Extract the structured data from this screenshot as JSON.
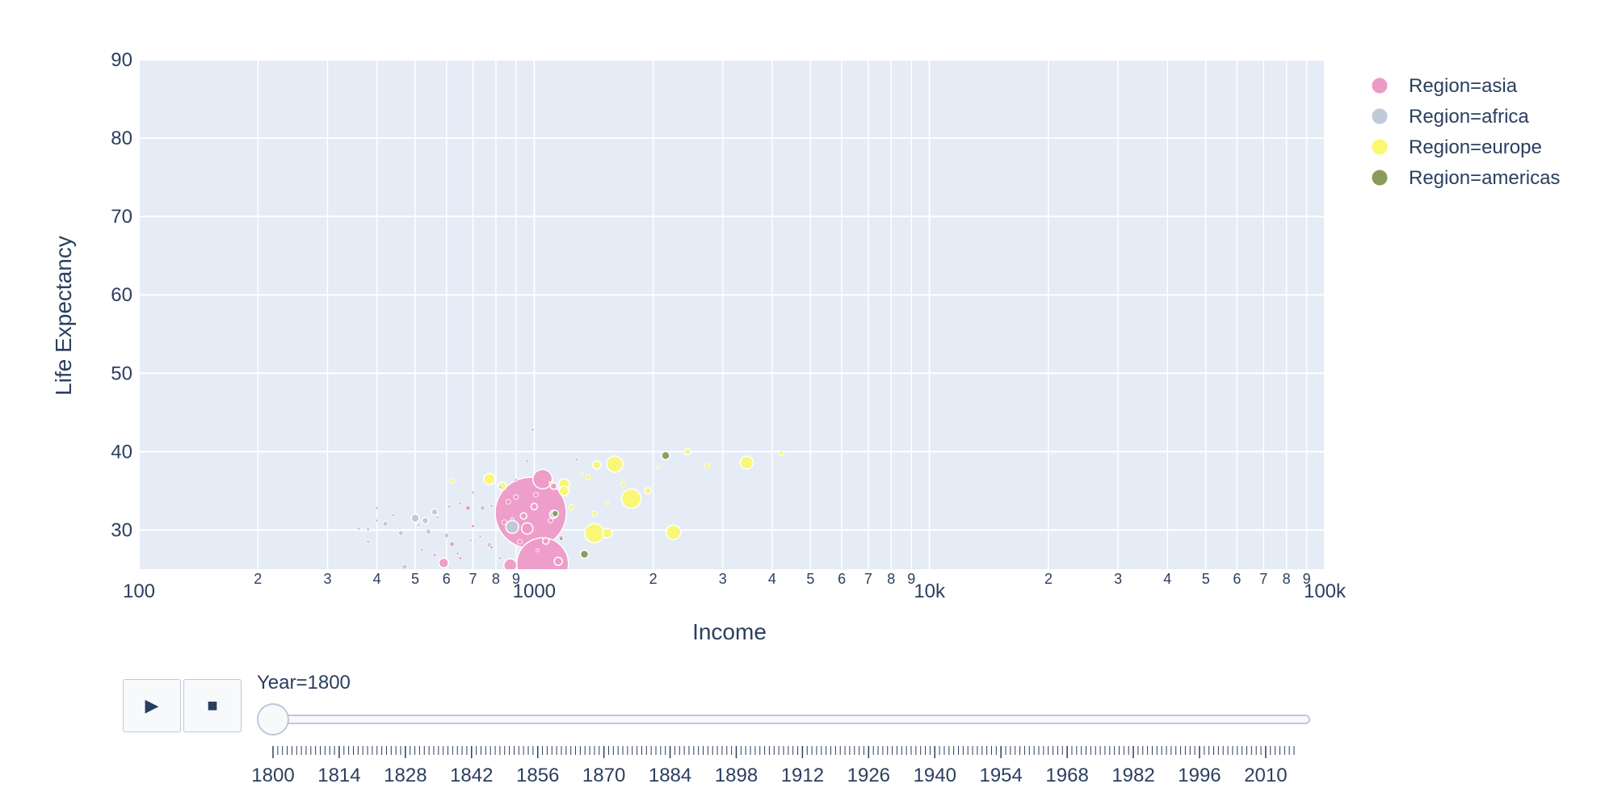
{
  "chart_data": {
    "type": "scatter",
    "xlabel": "Income",
    "ylabel": "Life Expectancy",
    "xscale": "log",
    "xlim": [
      100,
      100000
    ],
    "ylim": [
      25,
      90
    ],
    "x_tick_labels": [
      {
        "v": 100,
        "t": "100",
        "major": true
      },
      {
        "v": 200,
        "t": "2"
      },
      {
        "v": 300,
        "t": "3"
      },
      {
        "v": 400,
        "t": "4"
      },
      {
        "v": 500,
        "t": "5"
      },
      {
        "v": 600,
        "t": "6"
      },
      {
        "v": 700,
        "t": "7"
      },
      {
        "v": 800,
        "t": "8"
      },
      {
        "v": 900,
        "t": "9"
      },
      {
        "v": 1000,
        "t": "1000",
        "major": true
      },
      {
        "v": 2000,
        "t": "2"
      },
      {
        "v": 3000,
        "t": "3"
      },
      {
        "v": 4000,
        "t": "4"
      },
      {
        "v": 5000,
        "t": "5"
      },
      {
        "v": 6000,
        "t": "6"
      },
      {
        "v": 7000,
        "t": "7"
      },
      {
        "v": 8000,
        "t": "8"
      },
      {
        "v": 9000,
        "t": "9"
      },
      {
        "v": 10000,
        "t": "10k",
        "major": true
      },
      {
        "v": 20000,
        "t": "2"
      },
      {
        "v": 30000,
        "t": "3"
      },
      {
        "v": 40000,
        "t": "4"
      },
      {
        "v": 50000,
        "t": "5"
      },
      {
        "v": 60000,
        "t": "6"
      },
      {
        "v": 70000,
        "t": "7"
      },
      {
        "v": 80000,
        "t": "8"
      },
      {
        "v": 90000,
        "t": "9"
      },
      {
        "v": 100000,
        "t": "100k",
        "major": true
      }
    ],
    "y_tick_labels": [
      "30",
      "40",
      "50",
      "60",
      "70",
      "80",
      "90"
    ],
    "grid": true,
    "legend_position": "top-right",
    "series": [
      {
        "name": "Region=asia",
        "color": "#ee9ac7",
        "points": [
          [
            980,
            32.2,
            44
          ],
          [
            1050,
            25.7,
            32
          ],
          [
            1050,
            36.5,
            12
          ],
          [
            870,
            25.5,
            8
          ],
          [
            590,
            25.8,
            6
          ],
          [
            960,
            30.2,
            7
          ],
          [
            1150,
            26.0,
            5
          ],
          [
            940,
            31.8,
            4
          ],
          [
            1000,
            33.0,
            4
          ],
          [
            1070,
            28.6,
            4
          ],
          [
            1120,
            35.6,
            4
          ],
          [
            840,
            31.0,
            3
          ],
          [
            620,
            28.2,
            3
          ],
          [
            680,
            32.8,
            3
          ],
          [
            900,
            34.2,
            3
          ],
          [
            1010,
            34.5,
            3
          ],
          [
            1170,
            29.0,
            3
          ],
          [
            920,
            28.5,
            3
          ],
          [
            1100,
            31.2,
            3
          ],
          [
            860,
            33.6,
            3
          ],
          [
            700,
            30.5,
            2
          ],
          [
            780,
            27.8,
            2
          ],
          [
            1020,
            27.4,
            2
          ],
          [
            650,
            26.4,
            2
          ],
          [
            560,
            26.8,
            2
          ]
        ]
      },
      {
        "name": "Region=africa",
        "color": "#bfc9d9",
        "points": [
          [
            880,
            30.4,
            8
          ],
          [
            500,
            31.5,
            5
          ],
          [
            1120,
            32.0,
            5
          ],
          [
            530,
            31.2,
            4
          ],
          [
            560,
            32.3,
            4
          ],
          [
            420,
            30.8,
            3
          ],
          [
            460,
            29.6,
            3
          ],
          [
            540,
            29.8,
            3
          ],
          [
            600,
            29.3,
            3
          ],
          [
            740,
            32.8,
            3
          ],
          [
            770,
            28.1,
            3
          ],
          [
            470,
            25.3,
            3
          ],
          [
            400,
            31.2,
            2
          ],
          [
            360,
            30.2,
            2
          ],
          [
            380,
            30.1,
            2
          ],
          [
            440,
            31.9,
            2
          ],
          [
            510,
            30.6,
            2
          ],
          [
            650,
            33.4,
            2
          ],
          [
            700,
            34.8,
            2
          ],
          [
            820,
            35.5,
            2
          ],
          [
            900,
            36.4,
            2
          ],
          [
            380,
            28.5,
            2
          ],
          [
            570,
            31.6,
            2
          ],
          [
            610,
            33.0,
            2
          ],
          [
            730,
            29.2,
            2
          ],
          [
            960,
            38.8,
            2
          ],
          [
            990,
            42.8,
            2
          ],
          [
            1280,
            39.0,
            2
          ],
          [
            640,
            27.0,
            2
          ],
          [
            820,
            26.4,
            2
          ],
          [
            400,
            32.8,
            2
          ],
          [
            520,
            27.5,
            2
          ],
          [
            690,
            28.7,
            2
          ],
          [
            780,
            33.1,
            2
          ],
          [
            880,
            31.4,
            2
          ]
        ]
      },
      {
        "name": "Region=europe",
        "color": "#f9f871",
        "points": [
          [
            1760,
            34.0,
            12
          ],
          [
            1420,
            29.6,
            12
          ],
          [
            1600,
            38.4,
            10
          ],
          [
            2250,
            29.7,
            9
          ],
          [
            3450,
            38.6,
            8
          ],
          [
            1530,
            29.6,
            6
          ],
          [
            770,
            36.5,
            7
          ],
          [
            1190,
            35.8,
            7
          ],
          [
            1190,
            35.0,
            6
          ],
          [
            1440,
            38.3,
            5
          ],
          [
            1940,
            35.0,
            4
          ],
          [
            2440,
            40.0,
            4
          ],
          [
            4220,
            39.8,
            3
          ],
          [
            2740,
            38.2,
            3
          ],
          [
            1240,
            32.9,
            3
          ],
          [
            1420,
            32.1,
            3
          ],
          [
            1370,
            36.7,
            3
          ],
          [
            1680,
            35.8,
            3
          ],
          [
            2060,
            38.0,
            2
          ],
          [
            830,
            35.6,
            5
          ],
          [
            620,
            36.3,
            3
          ],
          [
            1530,
            33.4,
            2
          ],
          [
            1100,
            36.0,
            2
          ],
          [
            1320,
            37.2,
            2
          ]
        ]
      },
      {
        "name": "Region=americas",
        "color": "#8a9a5b",
        "points": [
          [
            2150,
            39.5,
            5
          ],
          [
            1340,
            26.9,
            5
          ],
          [
            1130,
            32.1,
            4
          ],
          [
            1170,
            28.9,
            2
          ]
        ]
      }
    ]
  },
  "slider": {
    "current_label": "Year=1800",
    "year_labels": [
      "1800",
      "1814",
      "1828",
      "1842",
      "1856",
      "1870",
      "1884",
      "1898",
      "1912",
      "1926",
      "1940",
      "1954",
      "1968",
      "1982",
      "1996",
      "2010"
    ],
    "year_start": 1800,
    "year_end": 2016,
    "current_year": 1800
  },
  "controls": {
    "play_icon": "play-icon",
    "stop_icon": "stop-icon"
  },
  "colors": {
    "plot_background": "#e5ecf6",
    "gridline": "#ffffff",
    "text": "#2a3f5f"
  }
}
